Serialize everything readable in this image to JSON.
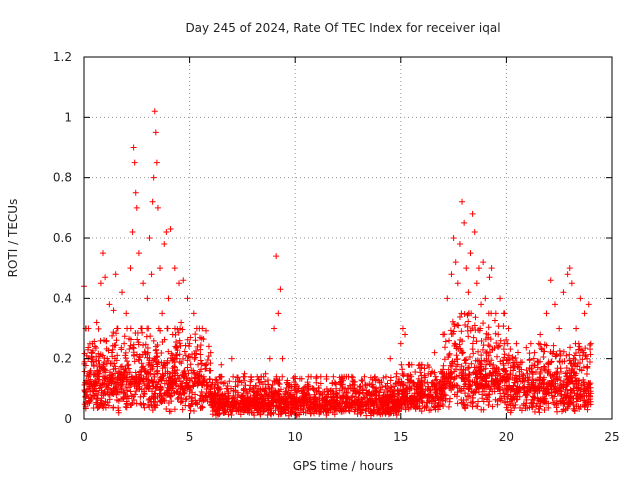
{
  "chart_data": {
    "type": "scatter",
    "title": "Day 245 of 2024, Rate Of TEC Index for receiver iqal",
    "xlabel": "GPS time / hours",
    "ylabel": "ROTI / TECUs",
    "xlim": [
      0,
      25
    ],
    "ylim": [
      0,
      1.2
    ],
    "xticks": [
      0,
      5,
      10,
      15,
      20,
      25
    ],
    "xtick_labels": [
      "0",
      "5",
      "10",
      "15",
      "20",
      "25"
    ],
    "yticks": [
      0,
      0.2,
      0.4,
      0.6,
      0.8,
      1.0,
      1.2
    ],
    "ytick_labels": [
      "0",
      "0.2",
      "0.4",
      "0.6",
      "0.8",
      "1",
      "1.2"
    ],
    "grid": true,
    "marker": "+",
    "color": "#ff0000",
    "series": [
      {
        "name": "ROTI",
        "points": [
          [
            0.0,
            0.44
          ],
          [
            0.05,
            0.12
          ],
          [
            0.1,
            0.3
          ],
          [
            0.15,
            0.08
          ],
          [
            0.2,
            0.2
          ],
          [
            0.3,
            0.06
          ],
          [
            0.4,
            0.25
          ],
          [
            0.5,
            0.1
          ],
          [
            0.6,
            0.32
          ],
          [
            0.7,
            0.15
          ],
          [
            0.8,
            0.45
          ],
          [
            0.9,
            0.55
          ],
          [
            1.0,
            0.47
          ],
          [
            1.1,
            0.2
          ],
          [
            1.2,
            0.38
          ],
          [
            1.3,
            0.09
          ],
          [
            1.4,
            0.36
          ],
          [
            1.5,
            0.48
          ],
          [
            1.6,
            0.3
          ],
          [
            1.7,
            0.12
          ],
          [
            1.8,
            0.42
          ],
          [
            1.9,
            0.25
          ],
          [
            2.0,
            0.35
          ],
          [
            2.1,
            0.18
          ],
          [
            2.2,
            0.5
          ],
          [
            2.3,
            0.62
          ],
          [
            2.35,
            0.9
          ],
          [
            2.4,
            0.85
          ],
          [
            2.45,
            0.75
          ],
          [
            2.5,
            0.7
          ],
          [
            2.6,
            0.55
          ],
          [
            2.7,
            0.3
          ],
          [
            2.8,
            0.45
          ],
          [
            2.9,
            0.22
          ],
          [
            3.0,
            0.4
          ],
          [
            3.1,
            0.6
          ],
          [
            3.2,
            0.48
          ],
          [
            3.25,
            0.72
          ],
          [
            3.3,
            0.8
          ],
          [
            3.35,
            1.02
          ],
          [
            3.4,
            0.95
          ],
          [
            3.45,
            0.85
          ],
          [
            3.5,
            0.7
          ],
          [
            3.6,
            0.5
          ],
          [
            3.7,
            0.35
          ],
          [
            3.8,
            0.58
          ],
          [
            3.9,
            0.62
          ],
          [
            4.0,
            0.4
          ],
          [
            4.1,
            0.63
          ],
          [
            4.2,
            0.28
          ],
          [
            4.3,
            0.5
          ],
          [
            4.4,
            0.2
          ],
          [
            4.5,
            0.45
          ],
          [
            4.6,
            0.32
          ],
          [
            4.7,
            0.46
          ],
          [
            4.8,
            0.15
          ],
          [
            4.9,
            0.4
          ],
          [
            5.0,
            0.25
          ],
          [
            5.2,
            0.35
          ],
          [
            5.4,
            0.18
          ],
          [
            5.6,
            0.3
          ],
          [
            5.8,
            0.12
          ],
          [
            6.0,
            0.22
          ],
          [
            6.2,
            0.08
          ],
          [
            6.5,
            0.18
          ],
          [
            6.8,
            0.1
          ],
          [
            7.0,
            0.2
          ],
          [
            7.3,
            0.08
          ],
          [
            7.6,
            0.15
          ],
          [
            8.0,
            0.1
          ],
          [
            8.3,
            0.12
          ],
          [
            8.6,
            0.15
          ],
          [
            8.8,
            0.2
          ],
          [
            9.0,
            0.3
          ],
          [
            9.1,
            0.54
          ],
          [
            9.2,
            0.35
          ],
          [
            9.3,
            0.43
          ],
          [
            9.4,
            0.2
          ],
          [
            9.6,
            0.12
          ],
          [
            10.0,
            0.1
          ],
          [
            10.5,
            0.08
          ],
          [
            11.0,
            0.12
          ],
          [
            11.5,
            0.1
          ],
          [
            12.0,
            0.08
          ],
          [
            12.5,
            0.1
          ],
          [
            13.0,
            0.07
          ],
          [
            13.5,
            0.09
          ],
          [
            14.0,
            0.12
          ],
          [
            14.5,
            0.2
          ],
          [
            14.8,
            0.15
          ],
          [
            15.0,
            0.25
          ],
          [
            15.1,
            0.3
          ],
          [
            15.2,
            0.28
          ],
          [
            15.4,
            0.18
          ],
          [
            15.6,
            0.12
          ],
          [
            16.0,
            0.18
          ],
          [
            16.3,
            0.15
          ],
          [
            16.6,
            0.22
          ],
          [
            17.0,
            0.28
          ],
          [
            17.2,
            0.4
          ],
          [
            17.4,
            0.48
          ],
          [
            17.5,
            0.6
          ],
          [
            17.6,
            0.52
          ],
          [
            17.7,
            0.45
          ],
          [
            17.8,
            0.58
          ],
          [
            17.9,
            0.72
          ],
          [
            18.0,
            0.65
          ],
          [
            18.1,
            0.5
          ],
          [
            18.2,
            0.42
          ],
          [
            18.3,
            0.55
          ],
          [
            18.4,
            0.68
          ],
          [
            18.5,
            0.62
          ],
          [
            18.6,
            0.45
          ],
          [
            18.7,
            0.5
          ],
          [
            18.8,
            0.38
          ],
          [
            18.9,
            0.52
          ],
          [
            19.0,
            0.4
          ],
          [
            19.2,
            0.47
          ],
          [
            19.3,
            0.5
          ],
          [
            19.5,
            0.35
          ],
          [
            19.7,
            0.4
          ],
          [
            19.9,
            0.25
          ],
          [
            20.1,
            0.3
          ],
          [
            20.3,
            0.2
          ],
          [
            20.6,
            0.18
          ],
          [
            21.0,
            0.15
          ],
          [
            21.3,
            0.2
          ],
          [
            21.6,
            0.28
          ],
          [
            21.9,
            0.35
          ],
          [
            22.1,
            0.46
          ],
          [
            22.3,
            0.38
          ],
          [
            22.5,
            0.3
          ],
          [
            22.7,
            0.42
          ],
          [
            22.9,
            0.48
          ],
          [
            23.0,
            0.5
          ],
          [
            23.1,
            0.45
          ],
          [
            23.3,
            0.3
          ],
          [
            23.5,
            0.4
          ],
          [
            23.7,
            0.35
          ],
          [
            23.9,
            0.38
          ]
        ],
        "dense_band": {
          "description": "dense cluster of ROTI samples (0 to 24 h)",
          "segments": [
            {
              "x_start": 0,
              "x_end": 6,
              "y_min": 0.02,
              "y_max": 0.3
            },
            {
              "x_start": 6,
              "x_end": 15,
              "y_min": 0.01,
              "y_max": 0.14
            },
            {
              "x_start": 15,
              "x_end": 17,
              "y_min": 0.02,
              "y_max": 0.18
            },
            {
              "x_start": 17,
              "x_end": 20,
              "y_min": 0.03,
              "y_max": 0.35
            },
            {
              "x_start": 20,
              "x_end": 24,
              "y_min": 0.02,
              "y_max": 0.25
            }
          ]
        }
      }
    ]
  }
}
